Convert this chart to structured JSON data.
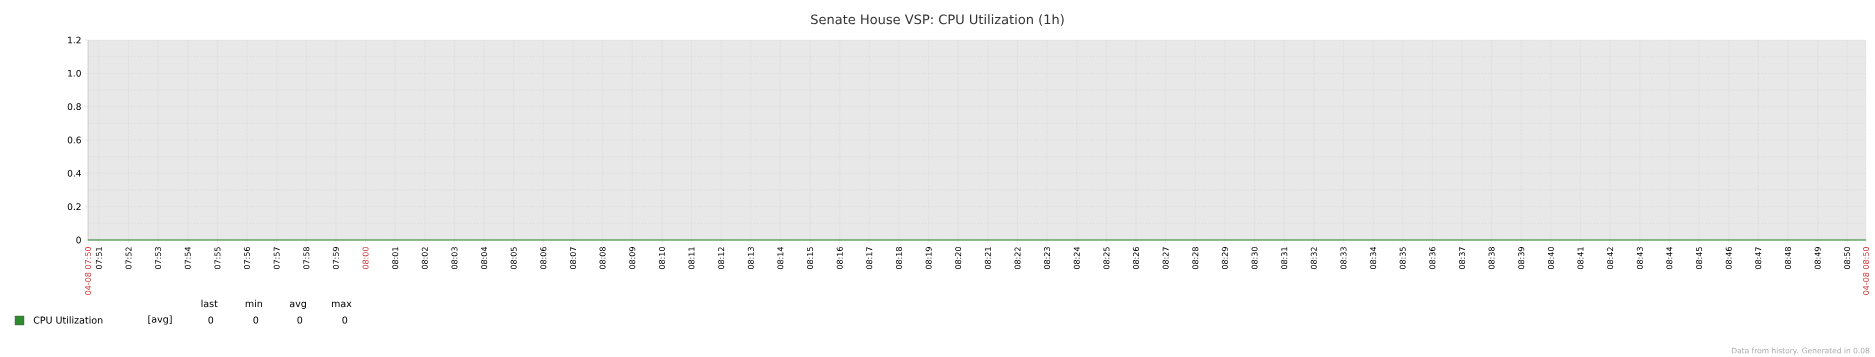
{
  "chart_data": {
    "type": "line",
    "title": "Senate House VSP: CPU Utilization (1h)",
    "series": [
      {
        "name": "CPU Utilization",
        "color": "#2e8b2e",
        "x": [
          7.8439,
          8.8439
        ],
        "values": [
          0,
          0
        ]
      }
    ],
    "xlim": [
      7.8439,
      8.8439
    ],
    "xticks": [
      {
        "value": 7.8439,
        "label": "04-08 07:50"
      },
      {
        "value": 7.85,
        "label": "07:51"
      },
      {
        "value": 7.8667,
        "label": "07:52"
      },
      {
        "value": 7.8833,
        "label": "07:53"
      },
      {
        "value": 7.9,
        "label": "07:54"
      },
      {
        "value": 7.9167,
        "label": "07:55"
      },
      {
        "value": 7.9333,
        "label": "07:56"
      },
      {
        "value": 7.95,
        "label": "07:57"
      },
      {
        "value": 7.9667,
        "label": "07:58"
      },
      {
        "value": 7.9833,
        "label": "07:59"
      },
      {
        "value": 8,
        "label": "08:00"
      },
      {
        "value": 8.0167,
        "label": "08:01"
      },
      {
        "value": 8.0333,
        "label": "08:02"
      },
      {
        "value": 8.05,
        "label": "08:03"
      },
      {
        "value": 8.0667,
        "label": "08:04"
      },
      {
        "value": 8.0833,
        "label": "08:05"
      },
      {
        "value": 8.1,
        "label": "08:06"
      },
      {
        "value": 8.1167,
        "label": "08:07"
      },
      {
        "value": 8.1333,
        "label": "08:08"
      },
      {
        "value": 8.15,
        "label": "08:09"
      },
      {
        "value": 8.1667,
        "label": "08:10"
      },
      {
        "value": 8.1833,
        "label": "08:11"
      },
      {
        "value": 8.2,
        "label": "08:12"
      },
      {
        "value": 8.2167,
        "label": "08:13"
      },
      {
        "value": 8.2333,
        "label": "08:14"
      },
      {
        "value": 8.25,
        "label": "08:15"
      },
      {
        "value": 8.2667,
        "label": "08:16"
      },
      {
        "value": 8.2833,
        "label": "08:17"
      },
      {
        "value": 8.3,
        "label": "08:18"
      },
      {
        "value": 8.3167,
        "label": "08:19"
      },
      {
        "value": 8.3333,
        "label": "08:20"
      },
      {
        "value": 8.35,
        "label": "08:21"
      },
      {
        "value": 8.3667,
        "label": "08:22"
      },
      {
        "value": 8.3833,
        "label": "08:23"
      },
      {
        "value": 8.4,
        "label": "08:24"
      },
      {
        "value": 8.4167,
        "label": "08:25"
      },
      {
        "value": 8.4333,
        "label": "08:26"
      },
      {
        "value": 8.45,
        "label": "08:27"
      },
      {
        "value": 8.4667,
        "label": "08:28"
      },
      {
        "value": 8.4833,
        "label": "08:29"
      },
      {
        "value": 8.5,
        "label": "08:30"
      },
      {
        "value": 8.5167,
        "label": "08:31"
      },
      {
        "value": 8.5333,
        "label": "08:32"
      },
      {
        "value": 8.55,
        "label": "08:33"
      },
      {
        "value": 8.5667,
        "label": "08:34"
      },
      {
        "value": 8.5833,
        "label": "08:35"
      },
      {
        "value": 8.6,
        "label": "08:36"
      },
      {
        "value": 8.6167,
        "label": "08:37"
      },
      {
        "value": 8.6333,
        "label": "08:38"
      },
      {
        "value": 8.65,
        "label": "08:39"
      },
      {
        "value": 8.6667,
        "label": "08:40"
      },
      {
        "value": 8.6833,
        "label": "08:41"
      },
      {
        "value": 8.7,
        "label": "08:42"
      },
      {
        "value": 8.7167,
        "label": "08:43"
      },
      {
        "value": 8.7333,
        "label": "08:44"
      },
      {
        "value": 8.75,
        "label": "08:45"
      },
      {
        "value": 8.7667,
        "label": "08:46"
      },
      {
        "value": 8.7833,
        "label": "08:47"
      },
      {
        "value": 8.8,
        "label": "08:48"
      },
      {
        "value": 8.8167,
        "label": "08:49"
      },
      {
        "value": 8.8333,
        "label": "08:50"
      },
      {
        "value": 8.8439,
        "label": "04-08 08:50"
      }
    ],
    "ylim": [
      0,
      1.2
    ],
    "yticks": [
      0,
      0.2,
      0.4,
      0.6,
      0.8,
      {
        "value": 1,
        "label": "1.0"
      },
      1.2
    ],
    "grid": true,
    "legend": "bottom left",
    "marker": "none",
    "line_style": "solid",
    "annotations": [
      "[avg]",
      "last",
      "min",
      "avg",
      "max",
      "0",
      "0",
      "0",
      "0",
      "Data from history. Generated in 0.08"
    ]
  }
}
